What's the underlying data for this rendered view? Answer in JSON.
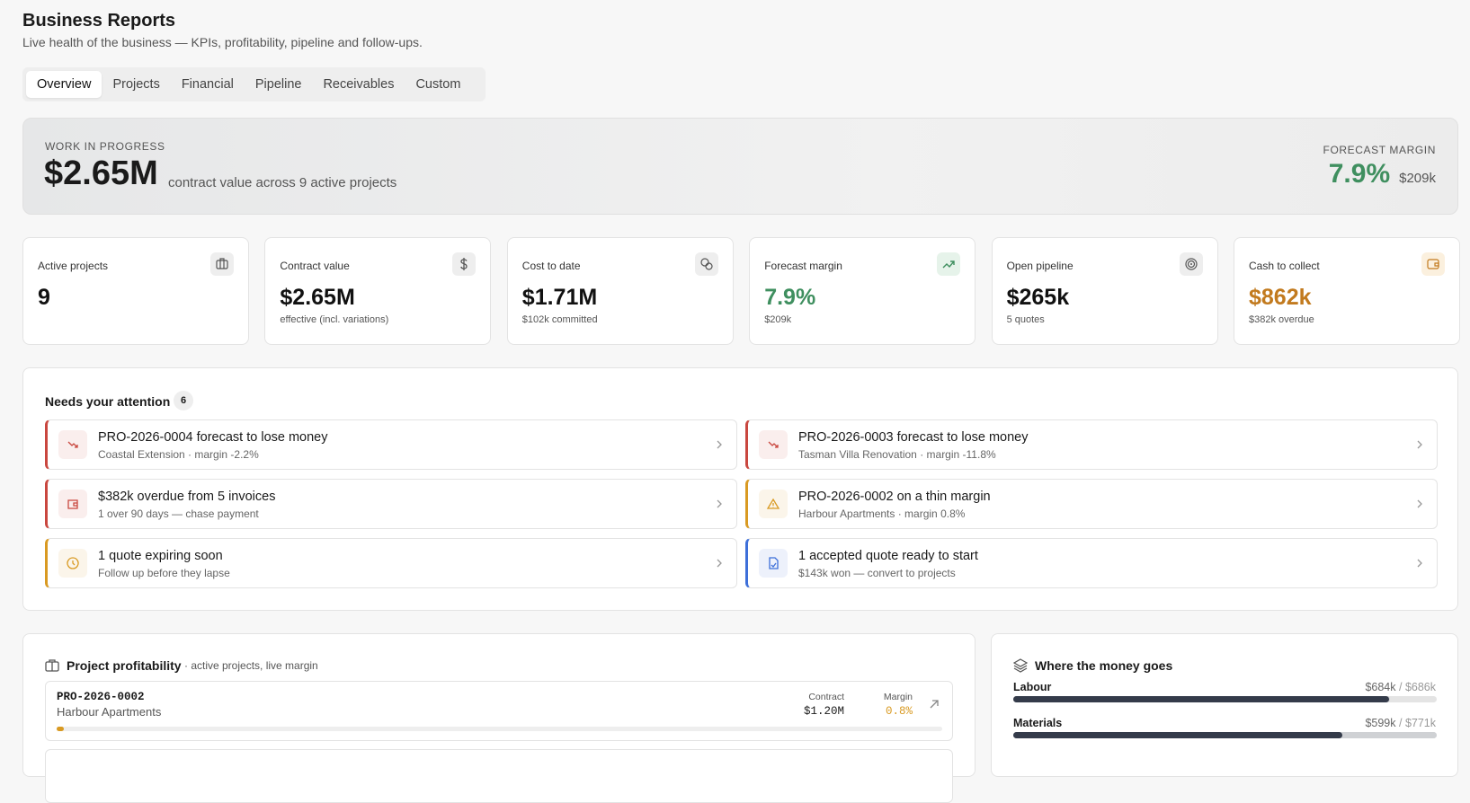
{
  "header": {
    "title": "Business Reports",
    "subtitle": "Live health of the business — KPIs, profitability, pipeline and follow-ups."
  },
  "tabs": [
    "Overview",
    "Projects",
    "Financial",
    "Pipeline",
    "Receivables",
    "Custom"
  ],
  "hero": {
    "label": "WORK IN PROGRESS",
    "value": "$2.65M",
    "caption": "contract value across 9 active projects",
    "right_label": "FORECAST MARGIN",
    "right_value": "7.9%",
    "right_sub": "$209k",
    "right_color": "#3f8f5f"
  },
  "kpis": [
    {
      "label": "Active projects",
      "value": "9",
      "sub": null,
      "color": "#111"
    },
    {
      "label": "Contract value",
      "value": "$2.65M",
      "sub": "effective (incl. variations)",
      "color": "#111"
    },
    {
      "label": "Cost to date",
      "value": "$1.71M",
      "sub": "$102k committed",
      "color": "#111"
    },
    {
      "label": "Forecast margin",
      "value": "7.9%",
      "sub": "$209k",
      "color": "#3f8f5f"
    },
    {
      "label": "Open pipeline",
      "value": "$265k",
      "sub": "5 quotes",
      "color": "#111"
    },
    {
      "label": "Cash to collect",
      "value": "$862k",
      "sub": "$382k overdue",
      "color": "#c27a1e"
    }
  ],
  "attention": {
    "title": "Needs your attention",
    "count": "6",
    "items": [
      {
        "title": "PRO-2026-0004 forecast to lose money",
        "sub": "Coastal Extension · margin -2.2%",
        "color": "#c9473f"
      },
      {
        "title": "PRO-2026-0003 forecast to lose money",
        "sub": "Tasman Villa Renovation · margin -11.8%",
        "color": "#c9473f"
      },
      {
        "title": "$382k overdue from 5 invoices",
        "sub": "1 over 90 days — chase payment",
        "color": "#c9473f"
      },
      {
        "title": "PRO-2026-0002 on a thin margin",
        "sub": "Harbour Apartments · margin 0.8%",
        "color": "#d99a22"
      },
      {
        "title": "1 quote expiring soon",
        "sub": "Follow up before they lapse",
        "color": "#d99a22"
      },
      {
        "title": "1 accepted quote ready to start",
        "sub": "$143k won — convert to projects",
        "color": "#3d6fd9"
      }
    ]
  },
  "profitability": {
    "title": "Project profitability",
    "subtitle": "· active projects, live margin",
    "contract_label": "Contract",
    "margin_label": "Margin",
    "projects": [
      {
        "code": "PRO-2026-0002",
        "name": "Harbour Apartments",
        "contract": "$1.20M",
        "margin": 0.8,
        "margin_label": "0.8%",
        "color": "#d99a22"
      }
    ]
  },
  "money": {
    "title": "Where the money goes",
    "items": [
      {
        "name": "Labour",
        "spent": 684000,
        "spent_label": "$684k",
        "budget": 686000,
        "budget_label": "$686k"
      },
      {
        "name": "Materials",
        "spent": 599000,
        "spent_label": "$599k",
        "budget": 771000,
        "budget_label": "$771k"
      }
    ]
  }
}
